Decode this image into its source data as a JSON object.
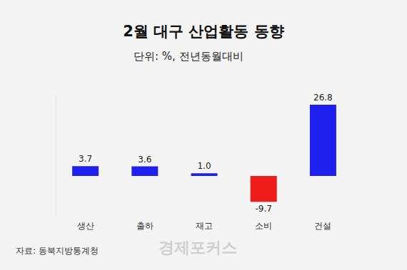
{
  "chart_data": {
    "type": "bar",
    "title": "2월 대구 산업활동 동향",
    "subtitle": "단위: %, 전년동월대비",
    "source": "자료: 동북지방통계청",
    "watermark": "경제포커스",
    "categories": [
      "생산",
      "출하",
      "재고",
      "소비",
      "건설"
    ],
    "values": [
      3.7,
      3.6,
      1.0,
      -9.7,
      26.8
    ],
    "value_labels": [
      "3.7",
      "3.6",
      "1.0",
      "-9.7",
      "26.8"
    ],
    "colors": [
      "#2020ee",
      "#2020ee",
      "#2020ee",
      "#ee1b1b",
      "#2020ee"
    ],
    "ylim": [
      -15,
      30
    ],
    "grid": false,
    "data_labels": true,
    "tick_labels": "x"
  }
}
